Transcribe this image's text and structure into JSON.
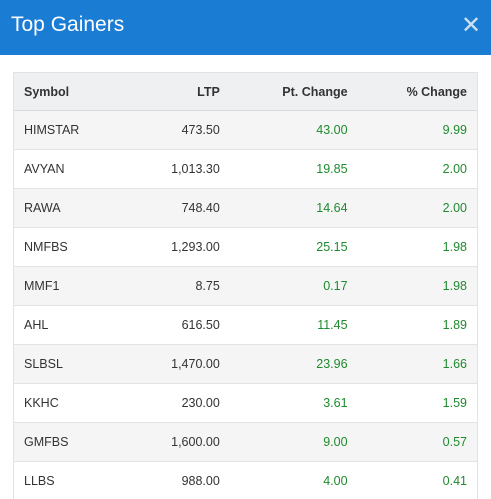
{
  "header": {
    "title": "Top Gainers",
    "close_glyph": "✕",
    "close_icon": "close-icon",
    "accent": "#1a7cd3"
  },
  "table": {
    "columns": [
      "Symbol",
      "LTP",
      "Pt. Change",
      "% Change"
    ],
    "positive_color": "#1f8a2e",
    "rows": [
      {
        "symbol": "HIMSTAR",
        "ltp": "473.50",
        "pt_change": "43.00",
        "pct_change": "9.99"
      },
      {
        "symbol": "AVYAN",
        "ltp": "1,013.30",
        "pt_change": "19.85",
        "pct_change": "2.00"
      },
      {
        "symbol": "RAWA",
        "ltp": "748.40",
        "pt_change": "14.64",
        "pct_change": "2.00"
      },
      {
        "symbol": "NMFBS",
        "ltp": "1,293.00",
        "pt_change": "25.15",
        "pct_change": "1.98"
      },
      {
        "symbol": "MMF1",
        "ltp": "8.75",
        "pt_change": "0.17",
        "pct_change": "1.98"
      },
      {
        "symbol": "AHL",
        "ltp": "616.50",
        "pt_change": "11.45",
        "pct_change": "1.89"
      },
      {
        "symbol": "SLBSL",
        "ltp": "1,470.00",
        "pt_change": "23.96",
        "pct_change": "1.66"
      },
      {
        "symbol": "KKHC",
        "ltp": "230.00",
        "pt_change": "3.61",
        "pct_change": "1.59"
      },
      {
        "symbol": "GMFBS",
        "ltp": "1,600.00",
        "pt_change": "9.00",
        "pct_change": "0.57"
      },
      {
        "symbol": "LLBS",
        "ltp": "988.00",
        "pt_change": "4.00",
        "pct_change": "0.41"
      }
    ]
  }
}
